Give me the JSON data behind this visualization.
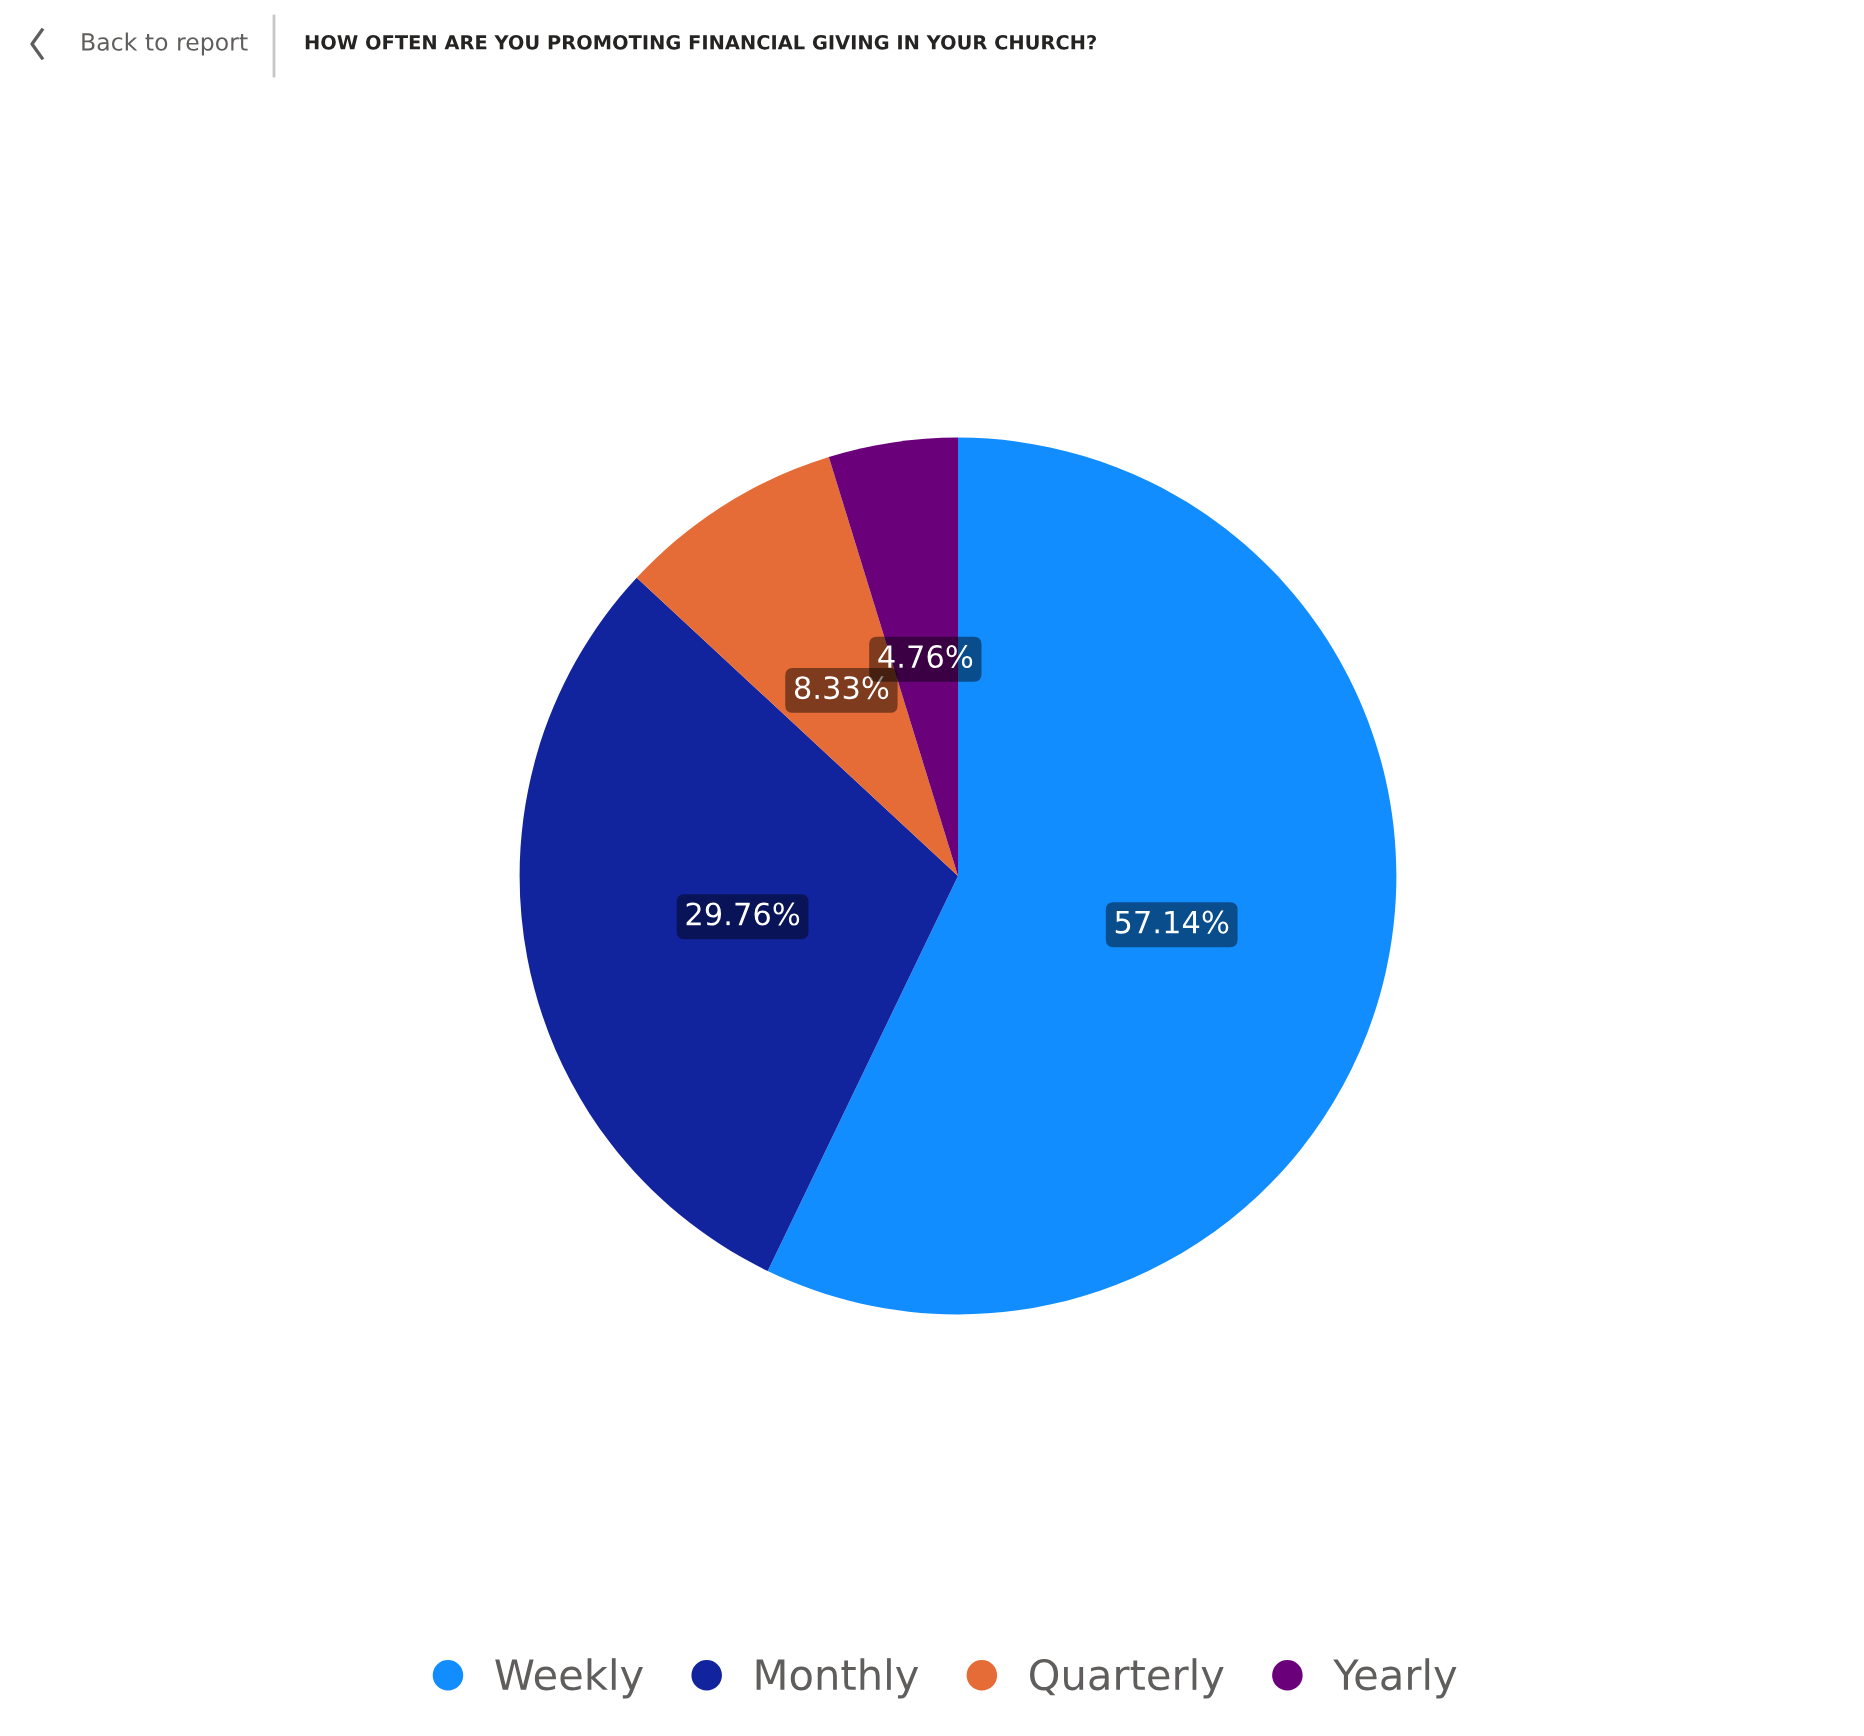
{
  "chart_data": {
    "type": "pie",
    "title": "HOW OFTEN ARE YOU PROMOTING FINANCIAL GIVING IN YOUR CHURCH?",
    "annotations": [
      "Back to report"
    ],
    "categories": [
      "Weekly",
      "Monthly",
      "Quarterly",
      "Yearly"
    ],
    "values": [
      57.14,
      29.76,
      8.33,
      4.76
    ],
    "value_labels": [
      "57.14%",
      "29.76%",
      "8.33%",
      "4.76%"
    ],
    "colors": [
      "#118dff",
      "#12239e",
      "#e66c37",
      "#6b007b"
    ],
    "legend": "bottom"
  }
}
